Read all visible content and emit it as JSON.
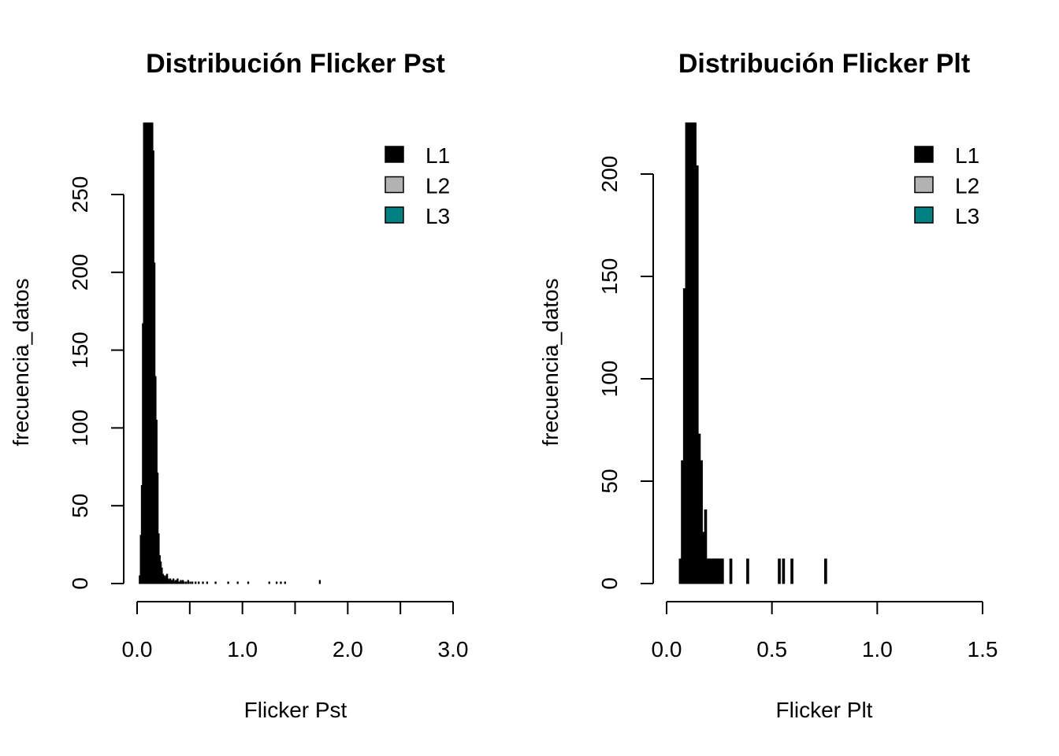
{
  "chart_data": [
    {
      "type": "bar",
      "title": "Distribución Flicker Pst",
      "xlabel": "Flicker Pst",
      "ylabel": "frecuencia_datos",
      "xlim": [
        0,
        3
      ],
      "ylim": [
        0,
        296
      ],
      "x_ticks": [
        0,
        0.5,
        1.0,
        1.5,
        2.0,
        2.5,
        3.0
      ],
      "x_tick_labels": [
        {
          "value": 0,
          "label": "0.0"
        },
        {
          "value": 1,
          "label": "1.0"
        },
        {
          "value": 2,
          "label": "2.0"
        },
        {
          "value": 3,
          "label": "3.0"
        }
      ],
      "y_ticks": [
        {
          "value": 0,
          "label": "0"
        },
        {
          "value": 50,
          "label": "50"
        },
        {
          "value": 100,
          "label": "100"
        },
        {
          "value": 150,
          "label": "150"
        },
        {
          "value": 200,
          "label": "200"
        },
        {
          "value": 250,
          "label": "250"
        }
      ],
      "bin_width": 0.01,
      "bins": [
        [
          0.02,
          5
        ],
        [
          0.03,
          31
        ],
        [
          0.04,
          63
        ],
        [
          0.05,
          167
        ],
        [
          0.06,
          296
        ],
        [
          0.07,
          296
        ],
        [
          0.08,
          296
        ],
        [
          0.09,
          296
        ],
        [
          0.1,
          296
        ],
        [
          0.11,
          296
        ],
        [
          0.12,
          296
        ],
        [
          0.13,
          296
        ],
        [
          0.14,
          296
        ],
        [
          0.15,
          278
        ],
        [
          0.16,
          206
        ],
        [
          0.17,
          133
        ],
        [
          0.18,
          105
        ],
        [
          0.19,
          71
        ],
        [
          0.2,
          32
        ],
        [
          0.21,
          18
        ],
        [
          0.22,
          14
        ],
        [
          0.23,
          10
        ],
        [
          0.24,
          6
        ],
        [
          0.25,
          5
        ],
        [
          0.26,
          4
        ],
        [
          0.27,
          5
        ],
        [
          0.28,
          6
        ],
        [
          0.29,
          3
        ],
        [
          0.3,
          2
        ],
        [
          0.31,
          3
        ],
        [
          0.32,
          2
        ],
        [
          0.33,
          2
        ],
        [
          0.34,
          3
        ],
        [
          0.35,
          1
        ],
        [
          0.36,
          2
        ],
        [
          0.37,
          2
        ],
        [
          0.38,
          3
        ],
        [
          0.39,
          1
        ],
        [
          0.4,
          1
        ],
        [
          0.41,
          2
        ],
        [
          0.42,
          1
        ],
        [
          0.43,
          2
        ],
        [
          0.44,
          1
        ],
        [
          0.46,
          1
        ],
        [
          0.48,
          2
        ],
        [
          0.5,
          1
        ],
        [
          0.52,
          1
        ],
        [
          0.55,
          1
        ],
        [
          0.58,
          1
        ],
        [
          0.62,
          1
        ],
        [
          0.66,
          1
        ],
        [
          0.74,
          1
        ],
        [
          0.86,
          1
        ],
        [
          0.95,
          1
        ],
        [
          1.05,
          1
        ],
        [
          1.25,
          1
        ],
        [
          1.32,
          1
        ],
        [
          1.36,
          1
        ],
        [
          1.4,
          1
        ],
        [
          1.73,
          2
        ]
      ],
      "legend": {
        "placement": "top-right",
        "entries": [
          {
            "label": "L1",
            "color": "#000000"
          },
          {
            "label": "L2",
            "color": "#b3b3b3"
          },
          {
            "label": "L3",
            "color": "#008080"
          }
        ]
      }
    },
    {
      "type": "bar",
      "title": "Distribución Flicker Plt",
      "xlabel": "Flicker Plt",
      "ylabel": "frecuencia_datos",
      "xlim": [
        0,
        1.5
      ],
      "ylim": [
        0,
        225
      ],
      "x_ticks": [
        0,
        0.5,
        1.0,
        1.5
      ],
      "x_tick_labels": [
        {
          "value": 0,
          "label": "0.0"
        },
        {
          "value": 0.5,
          "label": "0.5"
        },
        {
          "value": 1.0,
          "label": "1.0"
        },
        {
          "value": 1.5,
          "label": "1.5"
        }
      ],
      "y_ticks": [
        {
          "value": 0,
          "label": "0"
        },
        {
          "value": 50,
          "label": "50"
        },
        {
          "value": 100,
          "label": "100"
        },
        {
          "value": 150,
          "label": "150"
        },
        {
          "value": 200,
          "label": "200"
        }
      ],
      "bin_width": 0.01,
      "bins": [
        [
          0.06,
          12
        ],
        [
          0.07,
          60
        ],
        [
          0.08,
          144
        ],
        [
          0.09,
          225
        ],
        [
          0.1,
          225
        ],
        [
          0.11,
          225
        ],
        [
          0.12,
          225
        ],
        [
          0.13,
          225
        ],
        [
          0.14,
          204
        ],
        [
          0.15,
          73
        ],
        [
          0.16,
          60
        ],
        [
          0.17,
          25
        ],
        [
          0.18,
          36
        ],
        [
          0.19,
          12
        ],
        [
          0.2,
          12
        ],
        [
          0.21,
          12
        ],
        [
          0.22,
          12
        ],
        [
          0.23,
          12
        ],
        [
          0.24,
          12
        ],
        [
          0.25,
          12
        ],
        [
          0.26,
          12
        ],
        [
          0.3,
          12
        ],
        [
          0.38,
          12
        ],
        [
          0.53,
          12
        ],
        [
          0.55,
          12
        ],
        [
          0.59,
          12
        ],
        [
          0.75,
          12
        ]
      ],
      "legend": {
        "placement": "top-right",
        "entries": [
          {
            "label": "L1",
            "color": "#000000"
          },
          {
            "label": "L2",
            "color": "#b3b3b3"
          },
          {
            "label": "L3",
            "color": "#008080"
          }
        ]
      }
    }
  ]
}
